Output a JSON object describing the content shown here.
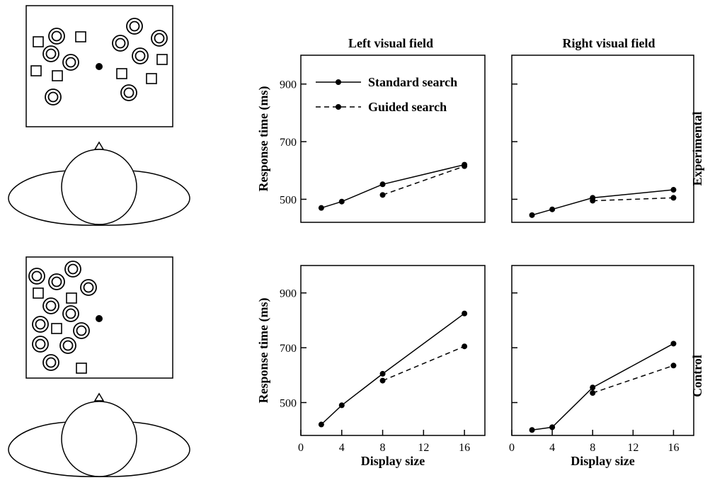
{
  "figure": {
    "column_titles": [
      "Left visual field",
      "Right visual field"
    ],
    "row_labels": [
      "Experimental",
      "Control"
    ],
    "legend": [
      "Standard search",
      "Guided search"
    ]
  },
  "chart_data": [
    {
      "type": "line",
      "row": "Experimental",
      "column": "Left visual field",
      "title": "Left visual field",
      "xlabel": "",
      "ylabel": "Response time (ms)",
      "xlim": [
        0,
        18
      ],
      "ylim": [
        420,
        1000
      ],
      "x_ticks": [],
      "y_ticks": [
        500,
        700,
        900
      ],
      "legend_position": "top-left",
      "series": [
        {
          "name": "Standard search",
          "style": "solid",
          "x": [
            2,
            4,
            8,
            16
          ],
          "y": [
            470,
            492,
            552,
            620
          ]
        },
        {
          "name": "Guided search",
          "style": "dashed",
          "x": [
            8,
            16
          ],
          "y": [
            515,
            615
          ]
        }
      ]
    },
    {
      "type": "line",
      "row": "Experimental",
      "column": "Right visual field",
      "title": "Right visual field",
      "xlabel": "",
      "ylabel": "",
      "xlim": [
        0,
        18
      ],
      "ylim": [
        420,
        1000
      ],
      "x_ticks": [],
      "y_ticks": [
        500,
        700,
        900
      ],
      "series": [
        {
          "name": "Standard search",
          "style": "solid",
          "x": [
            2,
            4,
            8,
            16
          ],
          "y": [
            445,
            465,
            505,
            533
          ]
        },
        {
          "name": "Guided search",
          "style": "dashed",
          "x": [
            8,
            16
          ],
          "y": [
            495,
            505
          ]
        }
      ]
    },
    {
      "type": "line",
      "row": "Control",
      "column": "Left visual field",
      "title": "",
      "xlabel": "Display size",
      "ylabel": "Response time (ms)",
      "xlim": [
        0,
        18
      ],
      "ylim": [
        380,
        1000
      ],
      "x_ticks": [
        0,
        4,
        8,
        12,
        16
      ],
      "y_ticks": [
        500,
        700,
        900
      ],
      "series": [
        {
          "name": "Standard search",
          "style": "solid",
          "x": [
            2,
            4,
            8,
            16
          ],
          "y": [
            420,
            490,
            605,
            825
          ]
        },
        {
          "name": "Guided search",
          "style": "dashed",
          "x": [
            8,
            16
          ],
          "y": [
            580,
            705
          ]
        }
      ]
    },
    {
      "type": "line",
      "row": "Control",
      "column": "Right visual field",
      "title": "",
      "xlabel": "Display size",
      "ylabel": "",
      "xlim": [
        0,
        18
      ],
      "ylim": [
        380,
        1000
      ],
      "x_ticks": [
        0,
        4,
        8,
        12,
        16
      ],
      "y_ticks": [
        500,
        700,
        900
      ],
      "series": [
        {
          "name": "Standard search",
          "style": "solid",
          "x": [
            2,
            4,
            8,
            16
          ],
          "y": [
            400,
            410,
            555,
            715
          ]
        },
        {
          "name": "Guided search",
          "style": "dashed",
          "x": [
            8,
            16
          ],
          "y": [
            535,
            635
          ]
        }
      ]
    }
  ]
}
